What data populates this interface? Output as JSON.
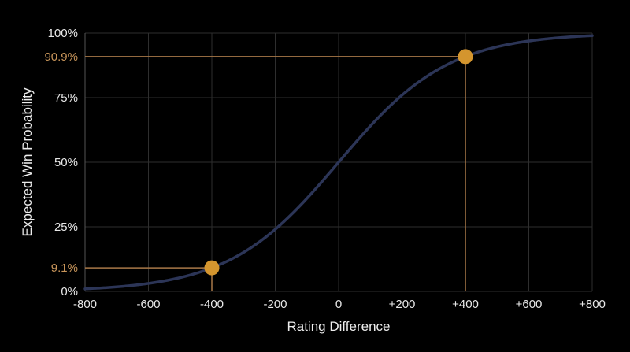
{
  "chart_data": {
    "type": "line",
    "title": "",
    "xlabel": "Rating Difference",
    "ylabel": "Expected Win Probability",
    "xlim": [
      -800,
      800
    ],
    "ylim": [
      0,
      100
    ],
    "x_ticks": [
      -800,
      -600,
      -400,
      -200,
      0,
      200,
      400,
      600,
      800
    ],
    "x_tick_labels": [
      "-800",
      "-600",
      "-400",
      "-200",
      "0",
      "+200",
      "+400",
      "+600",
      "+800"
    ],
    "y_ticks": [
      0,
      25,
      50,
      75,
      100
    ],
    "y_tick_labels": [
      "0%",
      "25%",
      "50%",
      "75%",
      "100%"
    ],
    "grid": true,
    "series": [
      {
        "color": "#2c3557",
        "x": [
          -800,
          -700,
          -600,
          -500,
          -400,
          -300,
          -200,
          -100,
          0,
          100,
          200,
          300,
          400,
          500,
          600,
          700,
          800
        ],
        "y": [
          1.0,
          1.7,
          3.1,
          5.3,
          9.1,
          15.1,
          24.0,
          36.0,
          50.0,
          64.0,
          76.0,
          84.9,
          90.9,
          94.7,
          96.9,
          98.3,
          99.0
        ]
      }
    ],
    "highlight_points": [
      {
        "x": -400,
        "y": 9.1,
        "label": "9.1%"
      },
      {
        "x": 400,
        "y": 90.9,
        "label": "90.9%"
      }
    ],
    "highlight_color": "#d4952e",
    "highlight_label_color": "#c8955a",
    "guide_line_color": "#a87848",
    "grid_color": "#2e2e2e",
    "background_color": "#000000"
  }
}
